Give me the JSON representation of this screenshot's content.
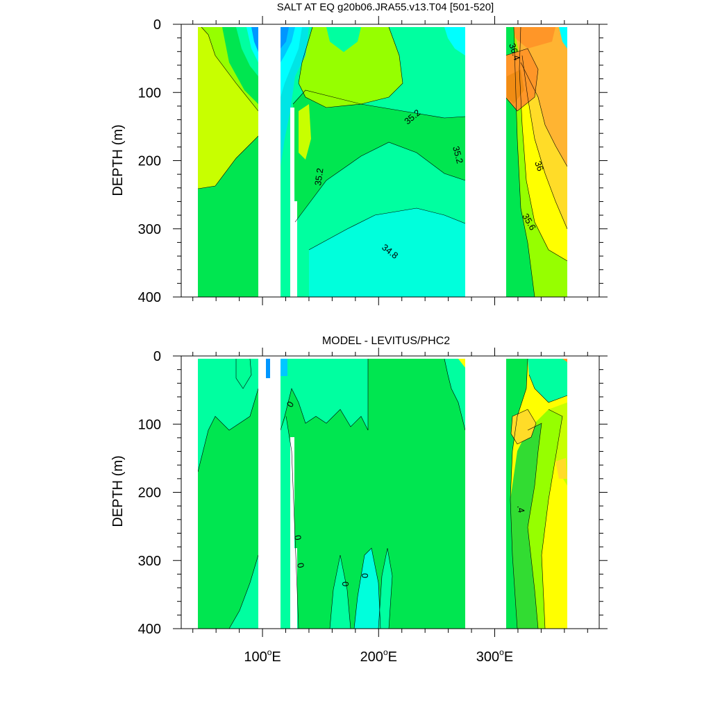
{
  "colors": {
    "aqua": "#00e5e5",
    "cyan": "#00ffff",
    "sky": "#00c8ff",
    "blue": "#0096ff",
    "blue_dark": "#0064ff",
    "mint": "#00ffa0",
    "green": "#00e650",
    "green2": "#32dc32",
    "lime": "#96ff00",
    "yellowgreen": "#c8ff00",
    "yellow": "#ffff00",
    "gold": "#ffdc28",
    "orange_light": "#ffb432",
    "orange": "#ff9628",
    "orange_dark": "#f08c14",
    "land": "#ffffff",
    "contour": "#000000"
  },
  "chart_data": [
    {
      "type": "contour",
      "title": "SALT AT EQ g20b06.JRA55.v13.T04 [501-520]",
      "ylabel": "DEPTH (m)",
      "xlabel": "",
      "xlim": [
        30,
        390
      ],
      "ylim": [
        400,
        0
      ],
      "x_ticks": [
        {
          "value": 100,
          "deg": "100",
          "suffix": "E"
        },
        {
          "value": 200,
          "deg": "200",
          "suffix": "E"
        },
        {
          "value": 300,
          "deg": "300",
          "suffix": "E"
        }
      ],
      "y_ticks": [
        {
          "value": 0,
          "label": "0"
        },
        {
          "value": 100,
          "label": "100"
        },
        {
          "value": 200,
          "label": "200"
        },
        {
          "value": 300,
          "label": "300"
        },
        {
          "value": 400,
          "label": "400"
        }
      ],
      "ocean_segments": [
        {
          "x": [
            44,
            98
          ],
          "name": "indian-ocean"
        },
        {
          "x": [
            118,
            278
          ],
          "name": "pacific-ocean"
        },
        {
          "x": [
            314,
            368
          ],
          "name": "atlantic-ocean"
        }
      ],
      "land_gaps": [
        [
          98,
          118
        ],
        [
          278,
          314
        ]
      ],
      "contour_labels": [
        "36.4",
        "35.2",
        "35.2",
        "35.2",
        "36",
        "35.6",
        "34.8"
      ]
    },
    {
      "type": "contour",
      "title": "MODEL - LEVITUS/PHC2",
      "ylabel": "DEPTH (m)",
      "xlabel": "",
      "xlim": [
        30,
        390
      ],
      "ylim": [
        400,
        0
      ],
      "x_ticks": [
        {
          "value": 100,
          "deg": "100",
          "suffix": "E"
        },
        {
          "value": 200,
          "deg": "200",
          "suffix": "E"
        },
        {
          "value": 300,
          "deg": "300",
          "suffix": "E"
        }
      ],
      "y_ticks": [
        {
          "value": 0,
          "label": "0"
        },
        {
          "value": 100,
          "label": "100"
        },
        {
          "value": 200,
          "label": "200"
        },
        {
          "value": 300,
          "label": "300"
        },
        {
          "value": 400,
          "label": "400"
        }
      ],
      "ocean_segments": [
        {
          "x": [
            44,
            98
          ],
          "name": "indian-ocean"
        },
        {
          "x": [
            118,
            278
          ],
          "name": "pacific-ocean"
        },
        {
          "x": [
            314,
            368
          ],
          "name": "atlantic-ocean"
        }
      ],
      "land_gaps": [
        [
          98,
          118
        ],
        [
          278,
          314
        ]
      ],
      "contour_labels": [
        "0",
        "0",
        "0",
        "0",
        "0",
        ".4"
      ]
    }
  ]
}
